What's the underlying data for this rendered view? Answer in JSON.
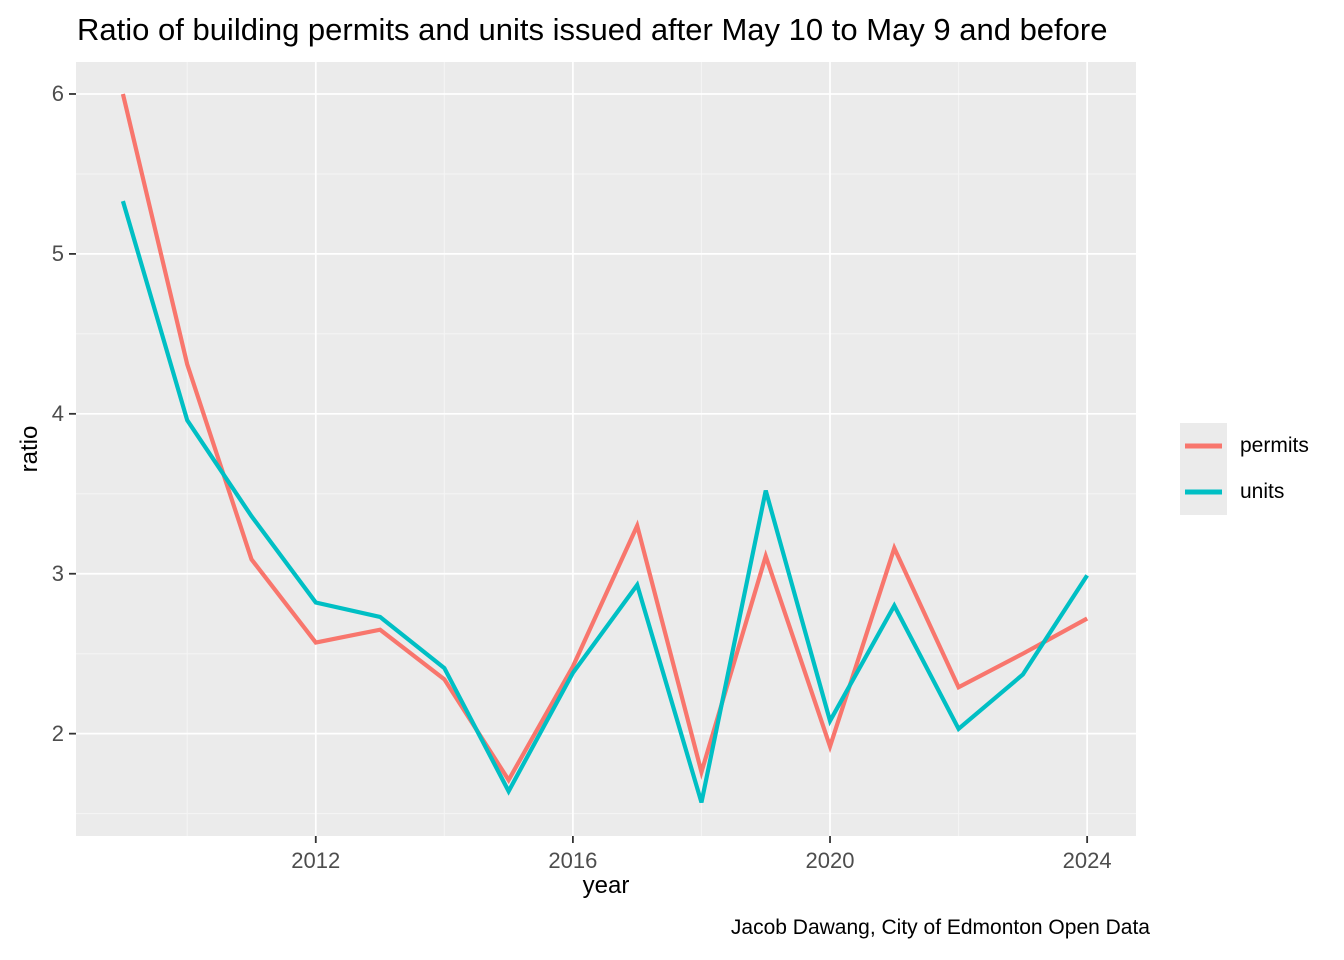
{
  "title": "Ratio of building permits and units issued after May 10 to May 9 and before",
  "caption": "Jacob Dawang, City of Edmonton Open Data",
  "legend": {
    "items": [
      {
        "label": "permits",
        "color": "#F8766D"
      },
      {
        "label": "units",
        "color": "#00BFC4"
      }
    ]
  },
  "axes": {
    "x_label": "year",
    "y_label": "ratio",
    "x_tick_labels": [
      "2012",
      "2016",
      "2020",
      "2024"
    ],
    "y_tick_labels": [
      "2",
      "3",
      "4",
      "5",
      "6"
    ]
  },
  "chart_data": {
    "type": "line",
    "title": "Ratio of building permits and units issued after May 10 to May 9 and before",
    "xlabel": "year",
    "ylabel": "ratio",
    "x": [
      2009,
      2010,
      2011,
      2012,
      2013,
      2014,
      2015,
      2016,
      2017,
      2018,
      2019,
      2020,
      2021,
      2022,
      2023,
      2024
    ],
    "series": [
      {
        "name": "permits",
        "color": "#F8766D",
        "values": [
          6.0,
          4.31,
          3.09,
          2.57,
          2.65,
          2.34,
          1.71,
          2.42,
          3.3,
          1.76,
          3.11,
          1.92,
          3.16,
          2.29,
          2.5,
          2.72
        ]
      },
      {
        "name": "units",
        "color": "#00BFC4",
        "values": [
          5.33,
          3.96,
          3.36,
          2.82,
          2.73,
          2.41,
          1.64,
          2.38,
          2.93,
          1.57,
          3.52,
          2.08,
          2.8,
          2.03,
          2.37,
          2.99
        ]
      }
    ],
    "x_ticks": [
      2012,
      2016,
      2020,
      2024
    ],
    "y_ticks": [
      2,
      3,
      4,
      5,
      6
    ],
    "xlim": [
      2008.27,
      2024.76
    ],
    "ylim": [
      1.36,
      6.2
    ],
    "panel_bg": "#EBEBEB",
    "grid_major_color": "#FFFFFF",
    "grid_minor_color": "#F5F5F5",
    "tick_mark_color": "#333333",
    "legend_position": "right",
    "line_width": 4.2
  }
}
